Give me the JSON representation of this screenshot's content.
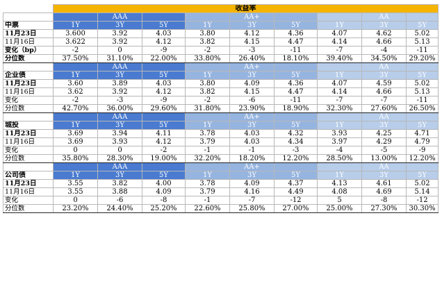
{
  "title": "收益率",
  "grades": [
    "AAA",
    "AA+",
    "AA"
  ],
  "tenors": [
    "1Y",
    "3Y",
    "5Y"
  ],
  "sections": [
    {
      "name": "中票",
      "rows": [
        {
          "label": "11月23日",
          "values": [
            "3.600",
            "3.92",
            "4.03",
            "3.80",
            "4.12",
            "4.36",
            "4.07",
            "4.62",
            "5.02"
          ]
        },
        {
          "label": "11月16日",
          "values": [
            "3.622",
            "3.92",
            "4.12",
            "3.82",
            "4.15",
            "4.47",
            "4.14",
            "4.66",
            "5.13"
          ]
        },
        {
          "label": "变化（bp）",
          "values": [
            "-2",
            "0",
            "-9",
            "-2",
            "-3",
            "-11",
            "-7",
            "-4",
            "-11"
          ]
        },
        {
          "label": "分位数",
          "values": [
            "37.50%",
            "31.10%",
            "22.00%",
            "33.80%",
            "26.40%",
            "18.10%",
            "39.40%",
            "34.50%",
            "29.20%"
          ]
        }
      ]
    },
    {
      "name": "企业债",
      "rows": [
        {
          "label": "11月23日",
          "values": [
            "3.60",
            "3.89",
            "4.03",
            "3.80",
            "4.09",
            "4.36",
            "4.07",
            "4.59",
            "5.02"
          ]
        },
        {
          "label": "11月16日",
          "values": [
            "3.62",
            "3.92",
            "4.12",
            "3.82",
            "4.15",
            "4.47",
            "4.14",
            "4.66",
            "5.13"
          ]
        },
        {
          "label": "变化",
          "values": [
            "-2",
            "-3",
            "-9",
            "-2",
            "-6",
            "-11",
            "-7",
            "-7",
            "-11"
          ]
        },
        {
          "label": "分位数",
          "values": [
            "42.70%",
            "36.00%",
            "29.60%",
            "31.80%",
            "23.90%",
            "18.90%",
            "32.30%",
            "27.60%",
            "26.50%"
          ]
        }
      ]
    },
    {
      "name": "城投",
      "rows": [
        {
          "label": "11月23日",
          "values": [
            "3.69",
            "3.94",
            "4.11",
            "3.78",
            "4.03",
            "4.32",
            "3.93",
            "4.25",
            "4.71"
          ]
        },
        {
          "label": "11月16日",
          "values": [
            "3.69",
            "3.93",
            "4.12",
            "3.79",
            "4.03",
            "4.34",
            "3.97",
            "4.29",
            "4.79"
          ]
        },
        {
          "label": "变化",
          "values": [
            "0",
            "0",
            "-2",
            "-1",
            "-1",
            "-3",
            "-4",
            "-5",
            "-9"
          ]
        },
        {
          "label": "分位数",
          "values": [
            "35.80%",
            "28.30%",
            "19.00%",
            "32.20%",
            "18.20%",
            "12.20%",
            "28.50%",
            "13.00%",
            "12.20%"
          ]
        }
      ]
    },
    {
      "name": "公司债",
      "rows": [
        {
          "label": "11月23日",
          "values": [
            "3.55",
            "3.82",
            "4.00",
            "3.78",
            "4.09",
            "4.37",
            "4.13",
            "4.61",
            "5.02"
          ]
        },
        {
          "label": "11月16日",
          "values": [
            "3.55",
            "3.88",
            "4.09",
            "3.79",
            "4.16",
            "4.49",
            "4.08",
            "4.69",
            "5.14"
          ]
        },
        {
          "label": "变化",
          "values": [
            "0",
            "-6",
            "-8",
            "-1",
            "-7",
            "-12",
            "5",
            "-8",
            "-12"
          ]
        },
        {
          "label": "分位数",
          "values": [
            "23.20%",
            "24.40%",
            "25.20%",
            "22.60%",
            "25.80%",
            "27.00%",
            "25.00%",
            "27.30%",
            "30.30%"
          ]
        }
      ]
    }
  ]
}
